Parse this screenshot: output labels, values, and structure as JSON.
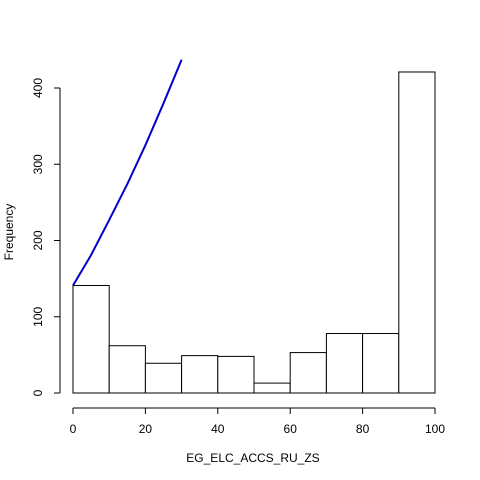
{
  "chart_data": {
    "type": "bar",
    "title": "",
    "xlabel": "EG_ELC_ACCS_RU_ZS",
    "ylabel": "Frequency",
    "xlim": [
      0,
      100
    ],
    "ylim": [
      0,
      440
    ],
    "grid": false,
    "bins": [
      {
        "from": 0,
        "to": 10,
        "count": 141
      },
      {
        "from": 10,
        "to": 20,
        "count": 62
      },
      {
        "from": 20,
        "to": 30,
        "count": 39
      },
      {
        "from": 30,
        "to": 40,
        "count": 49
      },
      {
        "from": 40,
        "to": 50,
        "count": 48
      },
      {
        "from": 50,
        "to": 60,
        "count": 13
      },
      {
        "from": 60,
        "to": 70,
        "count": 53
      },
      {
        "from": 70,
        "to": 80,
        "count": 78
      },
      {
        "from": 80,
        "to": 90,
        "count": 78
      },
      {
        "from": 90,
        "to": 100,
        "count": 421
      }
    ],
    "x_ticks": [
      0,
      20,
      40,
      60,
      80,
      100
    ],
    "y_ticks": [
      0,
      100,
      200,
      300,
      400
    ],
    "overlay_curve": {
      "type": "line",
      "color": "#0000cc",
      "x": [
        0,
        5,
        10,
        15,
        20,
        25,
        30
      ],
      "y": [
        141,
        181,
        227,
        274,
        325,
        380,
        437
      ]
    }
  }
}
